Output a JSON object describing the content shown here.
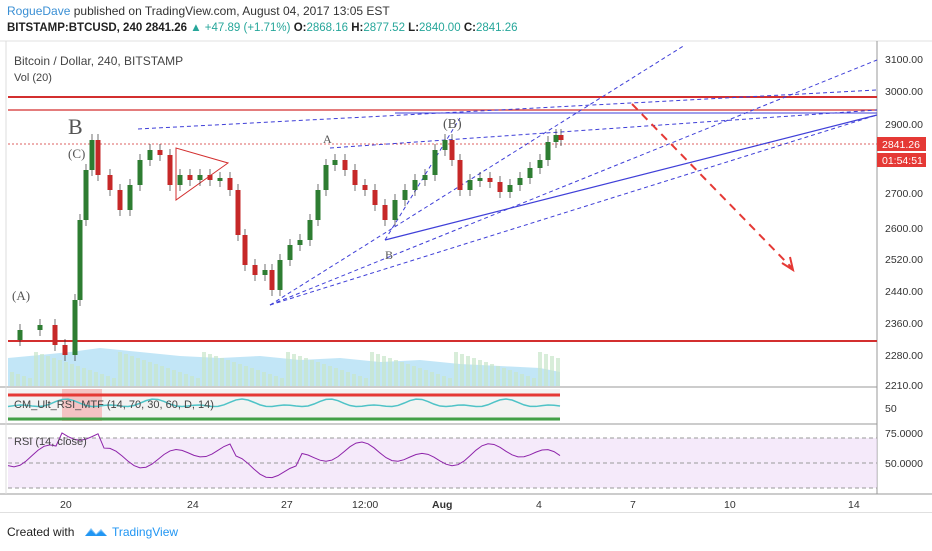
{
  "header": {
    "user": "RogueDave",
    "published_text": "published on TradingView.com, August 04, 2017 13:05 EST",
    "symbol": "BITSTAMP:BTCUSD, 240",
    "last": "2841.26",
    "change": "▲ +47.89 (+1.71%)",
    "o_label": "O:",
    "o_value": "2868.16",
    "h_label": "H:",
    "h_value": "2877.52",
    "l_label": "L:",
    "l_value": "2840.00",
    "c_label": "C:",
    "c_value": "2841.26"
  },
  "main_pane": {
    "title": "Bitcoin / Dollar, 240, BITSTAMP",
    "vol_label": "Vol (20)",
    "price_ticks": [
      "3100.00",
      "3000.00",
      "2900.00",
      "2700.00",
      "2600.00",
      "2520.00",
      "2440.00",
      "2360.00",
      "2280.00",
      "2210.00"
    ],
    "price_badge": "2841.26",
    "timer_badge": "01:54:51",
    "annotations": {
      "big_b": "B",
      "c_paren": "(C)",
      "a_paren": "(A)",
      "a_label": "A",
      "b_paren": "(B)",
      "b_label": "B"
    }
  },
  "indicator1": {
    "title": "CM_Ult_RSI_MTF (14, 70, 30, 60, D, 14)",
    "tick": "50"
  },
  "indicator2": {
    "title": "RSI (14, close)",
    "ticks": [
      "75.0000",
      "50.0000"
    ]
  },
  "time_axis": [
    "20",
    "24",
    "27",
    "12:00",
    "Aug",
    "4",
    "7",
    "10",
    "14"
  ],
  "footer": {
    "created_with": "Created with",
    "brand": "TradingView"
  },
  "colors": {
    "up": "#2e7d32",
    "down": "#c62828",
    "trend": "#3f3fd8",
    "resistance": "#d32f2f",
    "rsi": "#8e24aa"
  }
}
